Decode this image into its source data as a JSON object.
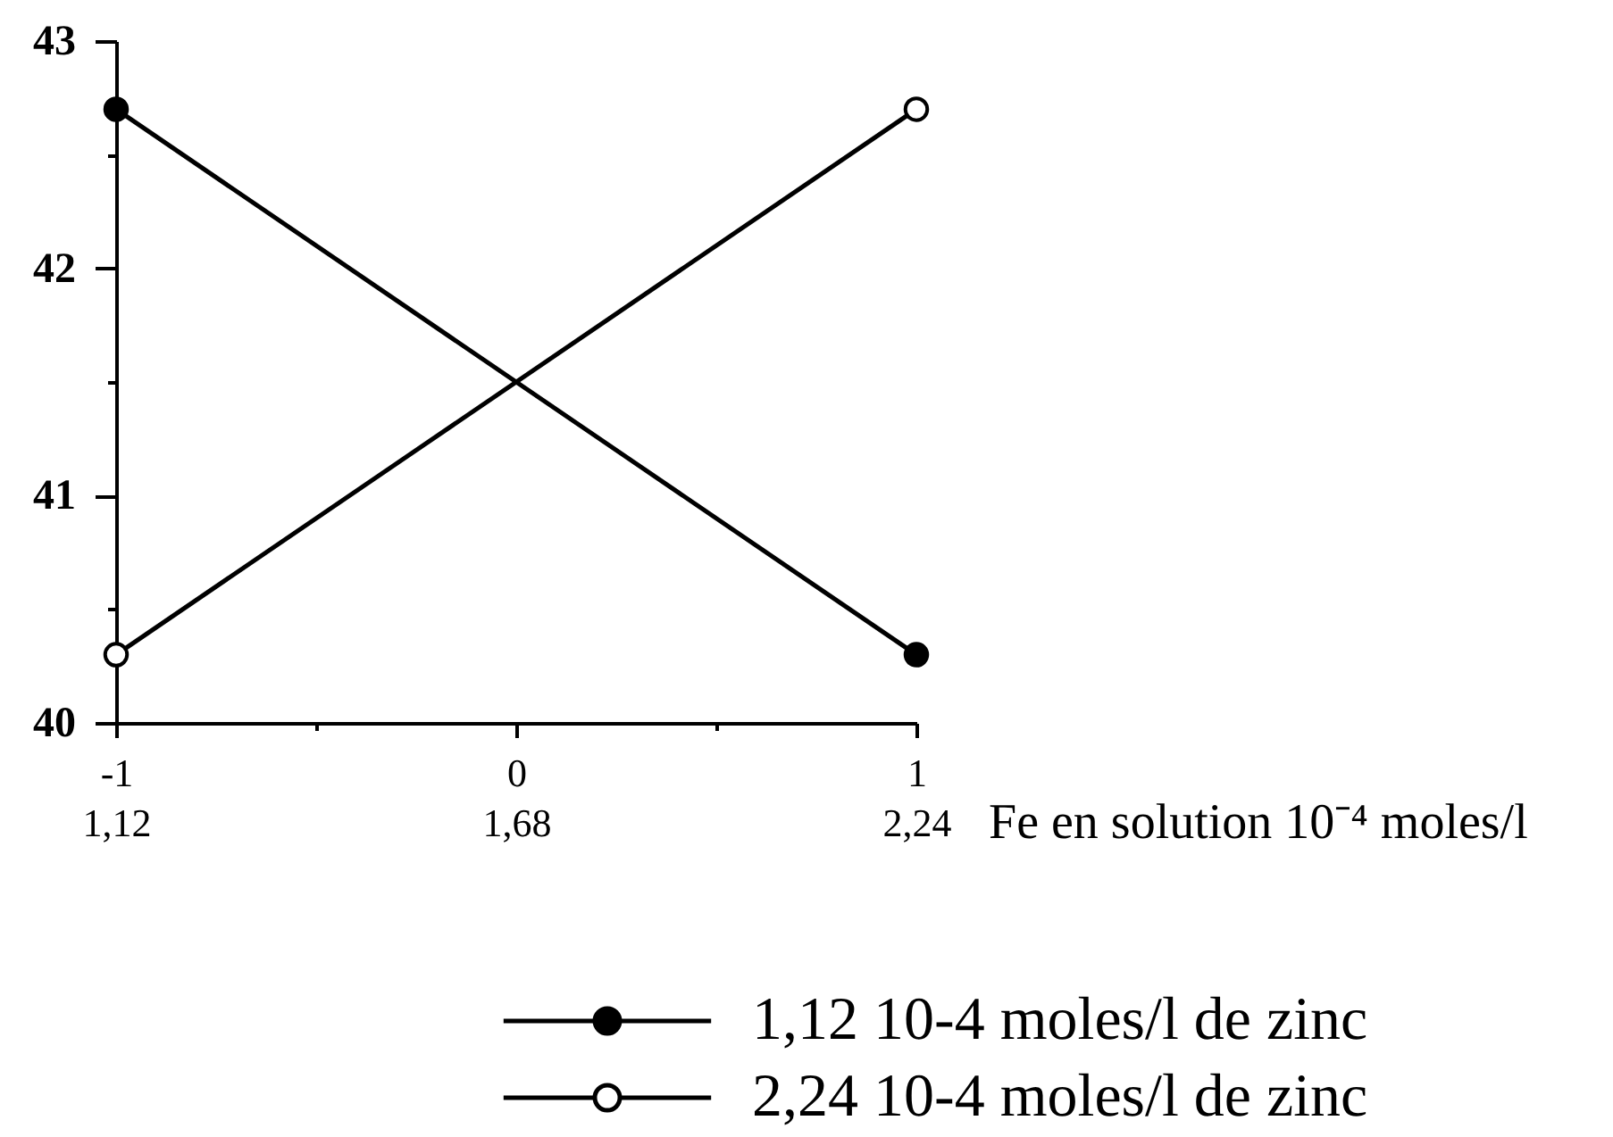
{
  "chart_data": {
    "type": "line",
    "x2label": "Fe en solution 10⁻⁴ moles/l",
    "x": [
      -1,
      1
    ],
    "series": [
      {
        "name": "1,12 10-4 moles/l de zinc",
        "color": "#000000",
        "values": [
          42.7,
          40.3
        ]
      },
      {
        "name": "2,24 10-4 moles/l de zinc",
        "color": "#000000",
        "values": [
          40.3,
          42.7
        ]
      }
    ],
    "xlim": [
      -1,
      1
    ],
    "ylim": [
      40,
      43
    ],
    "xticks": [
      -1,
      {
        "value": -0.5,
        "label": null
      },
      0,
      {
        "value": 0.5,
        "label": null
      },
      1
    ],
    "x2lim": [
      1.12,
      2.24
    ],
    "x2ticks": [
      {
        "value": 1.12,
        "label": "1,12"
      },
      {
        "value": 1.68,
        "label": "1,68"
      },
      {
        "value": 2.24,
        "label": "2,24"
      }
    ],
    "yticks": [
      40,
      {
        "value": 40.5,
        "label": null
      },
      41,
      {
        "value": 41.5,
        "label": null
      },
      42,
      {
        "value": 42.5,
        "label": null
      },
      43
    ],
    "marker": "circle",
    "line_style": "solid",
    "grid": false,
    "legend": "bottom"
  }
}
